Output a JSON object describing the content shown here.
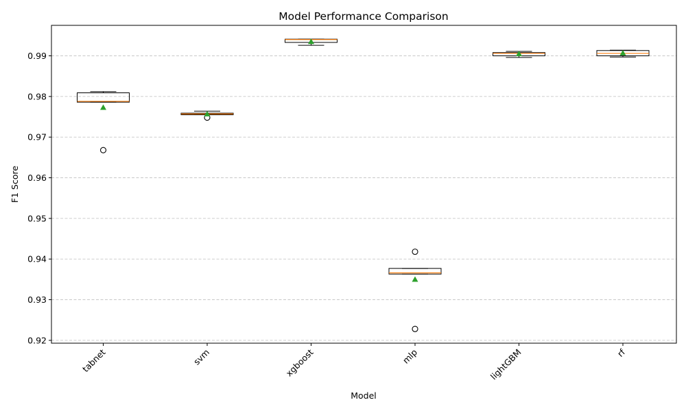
{
  "chart_data": {
    "type": "box",
    "title": "Model Performance Comparison",
    "xlabel": "Model",
    "ylabel": "F1 Score",
    "ylim": [
      0.9193,
      0.9975
    ],
    "yticks": [
      0.92,
      0.93,
      0.94,
      0.95,
      0.96,
      0.97,
      0.98,
      0.99
    ],
    "ytick_labels": [
      "0.92",
      "0.93",
      "0.94",
      "0.95",
      "0.96",
      "0.97",
      "0.98",
      "0.99"
    ],
    "grid": "y, dashed",
    "show_means": true,
    "colors": {
      "box_edge": "#000000",
      "median": "#ff7f0e",
      "mean_marker": "#2ca02c",
      "grid": "#c8c8c8"
    },
    "categories": [
      "tabnet",
      "svm",
      "xgboost",
      "mlp",
      "lightGBM",
      "rf"
    ],
    "boxes": [
      {
        "label": "tabnet",
        "whislo": 0.9786,
        "q1": 0.9786,
        "med": 0.9788,
        "q3": 0.9809,
        "whishi": 0.9812,
        "mean": 0.9773,
        "fliers": [
          0.9668
        ]
      },
      {
        "label": "svm",
        "whislo": 0.9755,
        "q1": 0.9755,
        "med": 0.9757,
        "q3": 0.9759,
        "whishi": 0.9764,
        "mean": 0.9757,
        "fliers": [
          0.9748
        ]
      },
      {
        "label": "xgboost",
        "whislo": 0.9926,
        "q1": 0.9933,
        "med": 0.994,
        "q3": 0.9941,
        "whishi": 0.9941,
        "mean": 0.9935,
        "fliers": []
      },
      {
        "label": "mlp",
        "whislo": 0.9363,
        "q1": 0.9363,
        "med": 0.9366,
        "q3": 0.9377,
        "whishi": 0.9377,
        "mean": 0.935,
        "fliers": [
          0.9418,
          0.9228
        ]
      },
      {
        "label": "lightGBM",
        "whislo": 0.9896,
        "q1": 0.99,
        "med": 0.9906,
        "q3": 0.9908,
        "whishi": 0.9911,
        "mean": 0.9905,
        "fliers": []
      },
      {
        "label": "rf",
        "whislo": 0.9897,
        "q1": 0.99,
        "med": 0.9906,
        "q3": 0.9913,
        "whishi": 0.9914,
        "mean": 0.9907,
        "fliers": []
      }
    ]
  }
}
